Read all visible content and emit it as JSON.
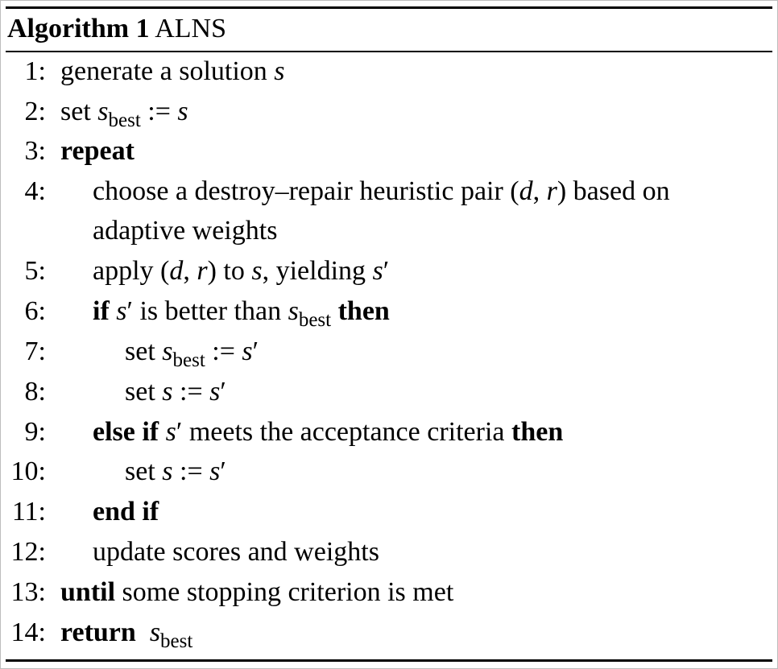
{
  "algorithm": {
    "label": "Algorithm 1",
    "name": "ALNS"
  },
  "lines": [
    {
      "n": "1:",
      "text": "generate a solution s"
    },
    {
      "n": "2:",
      "text": "set s_best := s"
    },
    {
      "n": "3:",
      "text": "repeat"
    },
    {
      "n": "4:",
      "text": "choose a destroy–repair heuristic pair (d, r) based on adaptive weights"
    },
    {
      "n": "5:",
      "text": "apply (d, r) to s, yielding s′"
    },
    {
      "n": "6:",
      "text": "if s′ is better than s_best then"
    },
    {
      "n": "7:",
      "text": "set s_best := s′"
    },
    {
      "n": "8:",
      "text": "set s := s′"
    },
    {
      "n": "9:",
      "text": "else if s′ meets the acceptance criteria then"
    },
    {
      "n": "10:",
      "text": "set s := s′"
    },
    {
      "n": "11:",
      "text": "end if"
    },
    {
      "n": "12:",
      "text": "update scores and weights"
    },
    {
      "n": "13:",
      "text": "until some stopping criterion is met"
    },
    {
      "n": "14:",
      "text": "return s_best"
    }
  ],
  "parts": {
    "generate": "generate a solution ",
    "s": "s",
    "s_prime": "s",
    "prime": "′",
    "best": "best",
    "set": "set ",
    "assign": " := ",
    "repeat": "repeat",
    "choose": "choose a destroy–repair heuristic pair (",
    "d": "d",
    "comma": ", ",
    "r": "r",
    "based_on": ") based on",
    "adaptive": "adaptive weights",
    "apply": "apply (",
    "to": ") to ",
    "yielding": ", yielding ",
    "if": "if",
    "is_better": " is better than ",
    "then": "then",
    "else_if": "else if",
    "meets": " meets the acceptance criteria ",
    "end_if": "end if",
    "update": "update scores and weights",
    "until": "until",
    "stopping": " some stopping criterion is met",
    "return": "return"
  }
}
